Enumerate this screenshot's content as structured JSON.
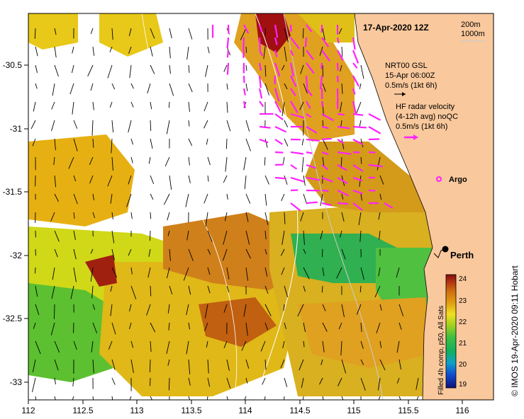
{
  "map": {
    "date": "17-Apr-2020 12Z",
    "depth_legend": [
      "200m",
      "1000m"
    ],
    "model": {
      "line1": "NRT00 GSL",
      "line2": "15-Apr 06:00Z",
      "line3": "0.5m/s (1kt 6h)"
    },
    "radar": {
      "line1": "HF radar velocity",
      "line2": "(4-12h avg) noQC",
      "line3": "0.5m/s (1kt 6h)"
    },
    "argo_label": "Argo",
    "city_label": "Perth",
    "colorbar_title": "Filled 4h comp, p50, All Sats",
    "credit": "© IMOS 19-Apr-2020 09:11 Hobart",
    "x_ticks": [
      "112",
      "112.5",
      "113",
      "113.5",
      "114",
      "114.5",
      "115",
      "115.5",
      "116"
    ],
    "y_ticks": [
      "-30.5",
      "-31",
      "-31.5",
      "-32",
      "-32.5",
      "-33"
    ],
    "colorbar_ticks": [
      "24",
      "23",
      "22",
      "21",
      "20",
      "19"
    ],
    "colors": {
      "land": "#F9C89C",
      "radar_arrow": "#FF22FF",
      "model_arrow": "#000000",
      "argo": "#FF22FF"
    }
  }
}
